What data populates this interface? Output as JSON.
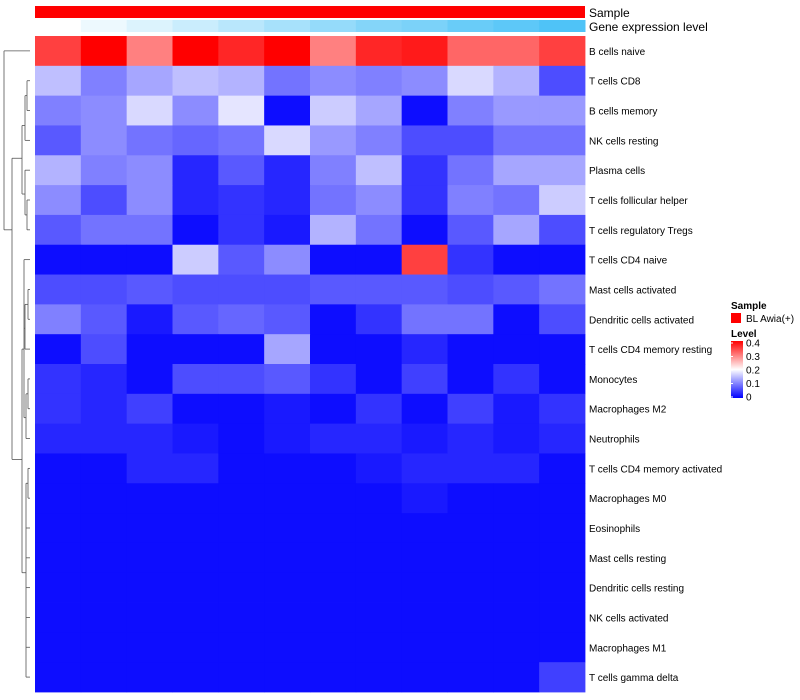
{
  "chart_data": {
    "type": "heatmap",
    "title": "",
    "annotation_tracks": [
      {
        "label": "Sample",
        "color_low": "#ff0000",
        "color_high": "#ff0000"
      },
      {
        "label": "Gene expression level",
        "color_low": "#ffffff",
        "color_high": "#4fc3f7"
      }
    ],
    "rows": [
      "B cells naive",
      "T cells CD8",
      "B cells memory",
      "NK cells resting",
      "Plasma cells",
      "T cells follicular helper",
      "T cells regulatory  Tregs",
      "T cells CD4 naive",
      "Mast cells activated",
      "Dendritic cells activated",
      "T cells CD4 memory resting",
      "Monocytes",
      "Macrophages M2",
      "Neutrophils",
      "T cells CD4 memory activated",
      "Macrophages M0",
      "Eosinophils",
      "Mast cells resting",
      "Dendritic cells resting",
      "NK cells activated",
      "Macrophages M1",
      "T cells gamma delta"
    ],
    "values": [
      [
        0.35,
        0.4,
        0.3,
        0.4,
        0.37,
        0.4,
        0.3,
        0.37,
        0.38,
        0.32,
        0.32,
        0.35
      ],
      [
        0.15,
        0.1,
        0.13,
        0.15,
        0.14,
        0.09,
        0.11,
        0.1,
        0.11,
        0.17,
        0.14,
        0.06
      ],
      [
        0.1,
        0.11,
        0.17,
        0.11,
        0.18,
        0.01,
        0.16,
        0.13,
        0.01,
        0.1,
        0.12,
        0.12
      ],
      [
        0.07,
        0.11,
        0.09,
        0.08,
        0.09,
        0.17,
        0.12,
        0.1,
        0.06,
        0.06,
        0.09,
        0.09
      ],
      [
        0.14,
        0.1,
        0.11,
        0.03,
        0.07,
        0.03,
        0.1,
        0.15,
        0.04,
        0.09,
        0.13,
        0.13
      ],
      [
        0.11,
        0.06,
        0.11,
        0.03,
        0.04,
        0.03,
        0.09,
        0.11,
        0.04,
        0.1,
        0.09,
        0.16
      ],
      [
        0.07,
        0.09,
        0.09,
        0.01,
        0.04,
        0.02,
        0.14,
        0.09,
        0.01,
        0.07,
        0.13,
        0.06
      ],
      [
        0.01,
        0.01,
        0.01,
        0.16,
        0.07,
        0.11,
        0.01,
        0.01,
        0.35,
        0.04,
        0.01,
        0.01
      ],
      [
        0.06,
        0.06,
        0.07,
        0.06,
        0.06,
        0.06,
        0.07,
        0.07,
        0.07,
        0.06,
        0.07,
        0.09
      ],
      [
        0.1,
        0.07,
        0.02,
        0.07,
        0.08,
        0.07,
        0.01,
        0.04,
        0.09,
        0.09,
        0.01,
        0.06
      ],
      [
        0.01,
        0.06,
        0.01,
        0.01,
        0.01,
        0.13,
        0.01,
        0.01,
        0.03,
        0.01,
        0.01,
        0.01
      ],
      [
        0.04,
        0.03,
        0.01,
        0.06,
        0.06,
        0.07,
        0.04,
        0.01,
        0.05,
        0.01,
        0.04,
        0.01
      ],
      [
        0.04,
        0.03,
        0.05,
        0.01,
        0.01,
        0.02,
        0.01,
        0.04,
        0.01,
        0.05,
        0.02,
        0.04
      ],
      [
        0.03,
        0.03,
        0.03,
        0.02,
        0.01,
        0.02,
        0.03,
        0.03,
        0.02,
        0.03,
        0.02,
        0.03
      ],
      [
        0.01,
        0.01,
        0.03,
        0.03,
        0.01,
        0.01,
        0.01,
        0.02,
        0.03,
        0.03,
        0.03,
        0.01
      ],
      [
        0.01,
        0.01,
        0.01,
        0.01,
        0.01,
        0.01,
        0.01,
        0.01,
        0.02,
        0.01,
        0.01,
        0.01
      ],
      [
        0.01,
        0.01,
        0.01,
        0.01,
        0.01,
        0.01,
        0.01,
        0.01,
        0.01,
        0.01,
        0.01,
        0.01
      ],
      [
        0.01,
        0.01,
        0.01,
        0.01,
        0.01,
        0.01,
        0.01,
        0.01,
        0.01,
        0.01,
        0.01,
        0.01
      ],
      [
        0.01,
        0.01,
        0.01,
        0.01,
        0.01,
        0.01,
        0.01,
        0.01,
        0.01,
        0.01,
        0.01,
        0.01
      ],
      [
        0.01,
        0.01,
        0.01,
        0.01,
        0.01,
        0.01,
        0.01,
        0.01,
        0.01,
        0.01,
        0.01,
        0.01
      ],
      [
        0.01,
        0.01,
        0.01,
        0.01,
        0.01,
        0.01,
        0.01,
        0.01,
        0.01,
        0.01,
        0.01,
        0.01
      ],
      [
        0.01,
        0.01,
        0.01,
        0.01,
        0.01,
        0.01,
        0.01,
        0.01,
        0.01,
        0.01,
        0.01,
        0.05
      ]
    ],
    "expression_track": [
      0.0,
      0.1,
      0.2,
      0.3,
      0.4,
      0.5,
      0.6,
      0.7,
      0.75,
      0.85,
      0.92,
      1.0
    ],
    "scale": {
      "min": 0,
      "mid": 0.2,
      "max": 0.4,
      "low": "#0000ff",
      "mid_color": "#ffffff",
      "high": "#ff0000"
    },
    "legend": {
      "position": "right",
      "sample_title": "Sample",
      "sample_entry": "BL Awia(+)",
      "sample_color": "#ff0000",
      "level_title": "Level",
      "level_ticks": [
        "0.4",
        "0.3",
        "0.2",
        "0.1",
        "0"
      ],
      "level_values": [
        0.4,
        0.3,
        0.2,
        0.1,
        0
      ]
    },
    "dendrogram": "rows"
  }
}
